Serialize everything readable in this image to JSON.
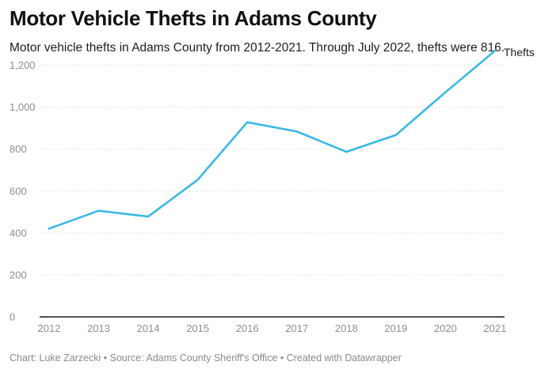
{
  "header": {
    "title": "Motor Vehicle Thefts in Adams County",
    "subtitle": "Motor vehicle thefts in Adams County from 2012-2021. Through July 2022, thefts were 816."
  },
  "footer": {
    "credits": "Chart: Luke Zarzecki • Source: Adams County Sheriff's Office • Created with Datawrapper"
  },
  "colors": {
    "line": "#3bb8e6",
    "grid": "#d9d9d9",
    "axis": "#1a1a1a"
  },
  "chart_data": {
    "type": "line",
    "title": "Motor Vehicle Thefts in Adams County",
    "xlabel": "",
    "ylabel": "",
    "x": [
      2012,
      2013,
      2014,
      2015,
      2016,
      2017,
      2018,
      2019,
      2020,
      2021
    ],
    "series": [
      {
        "name": "Thefts",
        "values": [
          421,
          506,
          478,
          654,
          928,
          884,
          787,
          867,
          1071,
          1269
        ]
      }
    ],
    "ylim": [
      0,
      1300
    ],
    "yticks": [
      0,
      200,
      400,
      600,
      800,
      1000,
      1200
    ],
    "ytick_labels": [
      "0",
      "200",
      "400",
      "600",
      "800",
      "1,000",
      "1,200"
    ],
    "xtick_labels": [
      "2012",
      "2013",
      "2014",
      "2015",
      "2016",
      "2017",
      "2018",
      "2019",
      "2020",
      "2021"
    ],
    "grid": true,
    "legend": "direct label at line end"
  }
}
